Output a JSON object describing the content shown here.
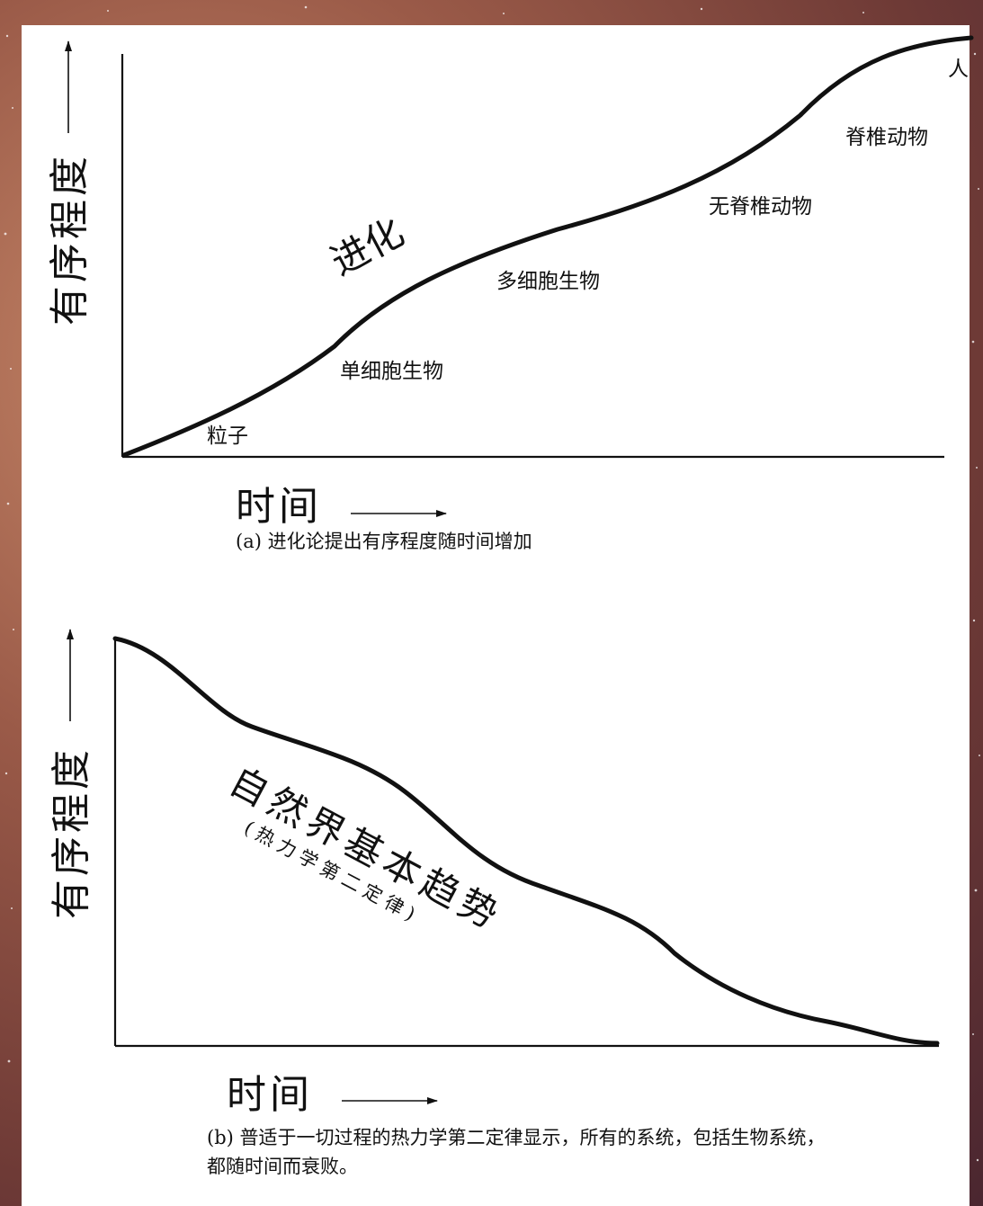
{
  "panel_a": {
    "y_axis_label": "有序程度",
    "x_axis_label": "时间",
    "curve_label": "进化",
    "stage_labels": {
      "particles": "粒子",
      "single_cell": "单细胞生物",
      "multi_cell": "多细胞生物",
      "invertebrates": "无脊椎动物",
      "vertebrates": "脊椎动物",
      "human": "人"
    },
    "caption": "(a) 进化论提出有序程度随时间增加"
  },
  "panel_b": {
    "y_axis_label": "有序程度",
    "x_axis_label": "时间",
    "curve_label": "自然界基本趋势",
    "curve_sublabel": "(热力学第二定律)",
    "caption_line1": "(b) 普适于一切过程的热力学第二定律显示，所有的系统，包括生物系统，",
    "caption_line2": "都随时间而衰败。"
  },
  "colors": {
    "ink": "#111111",
    "paper": "#ffffff",
    "nebula_border": "#9a5a48"
  }
}
